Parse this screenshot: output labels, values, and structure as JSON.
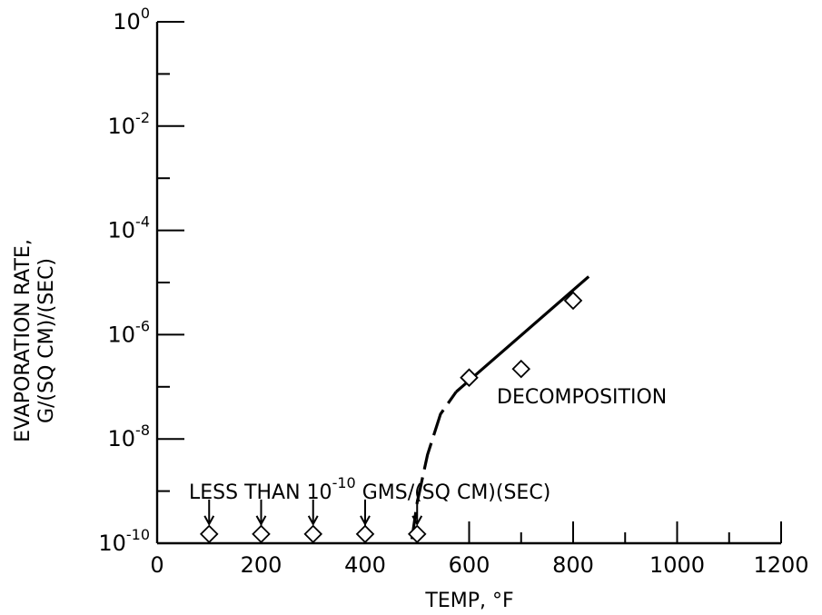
{
  "chart_data": {
    "type": "scatter",
    "xlabel": "TEMP, °F",
    "ylabel_line1": "EVAPORATION RATE,",
    "ylabel_line2": "G/(SQ CM)/(SEC)",
    "xlim": [
      0,
      1200
    ],
    "ylim_exponent": [
      -10,
      0
    ],
    "y_scale": "log",
    "grid": false,
    "x_ticks": [
      {
        "value": 0,
        "label": "0"
      },
      {
        "value": 200,
        "label": "200"
      },
      {
        "value": 400,
        "label": "400"
      },
      {
        "value": 600,
        "label": "600"
      },
      {
        "value": 800,
        "label": "800"
      },
      {
        "value": 1000,
        "label": "1000"
      },
      {
        "value": 1200,
        "label": "1200"
      }
    ],
    "x_minor_ticks": [
      100,
      300,
      500,
      700,
      900,
      1100
    ],
    "y_ticks": [
      {
        "exponent": 0,
        "base": "10",
        "sup": "0"
      },
      {
        "exponent": -2,
        "base": "10",
        "sup": "-2"
      },
      {
        "exponent": -4,
        "base": "10",
        "sup": "-4"
      },
      {
        "exponent": -6,
        "base": "10",
        "sup": "-6"
      },
      {
        "exponent": -8,
        "base": "10",
        "sup": "-8"
      },
      {
        "exponent": -10,
        "base": "10",
        "sup": "-10"
      }
    ],
    "y_minor_ticks": [
      -1,
      -3,
      -5,
      -7,
      -9
    ],
    "points_below_limit": [
      {
        "x": 100,
        "y": 1.5e-10
      },
      {
        "x": 200,
        "y": 1.5e-10
      },
      {
        "x": 300,
        "y": 1.5e-10
      },
      {
        "x": 400,
        "y": 1.5e-10
      },
      {
        "x": 500,
        "y": 1.5e-10
      }
    ],
    "points_measured": [
      {
        "x": 600,
        "y": 1.5e-07
      },
      {
        "x": 700,
        "y": 2.2e-07
      },
      {
        "x": 800,
        "y": 4.5e-06
      }
    ],
    "dashed_curve": [
      {
        "x": 490,
        "y": 1.2e-10
      },
      {
        "x": 500,
        "y": 6e-10
      },
      {
        "x": 520,
        "y": 5e-09
      },
      {
        "x": 545,
        "y": 3e-08
      },
      {
        "x": 575,
        "y": 8e-08
      }
    ],
    "solid_line": [
      {
        "x": 575,
        "y": 8e-08
      },
      {
        "x": 830,
        "y": 1.3e-05
      }
    ],
    "annotations": {
      "limit_text_part1": "LESS THAN ",
      "limit_base": "10",
      "limit_sup": "-10",
      "limit_text_part2": "  GMS/(SQ CM)(SEC)",
      "decomposition": "DECOMPOSITION"
    }
  }
}
